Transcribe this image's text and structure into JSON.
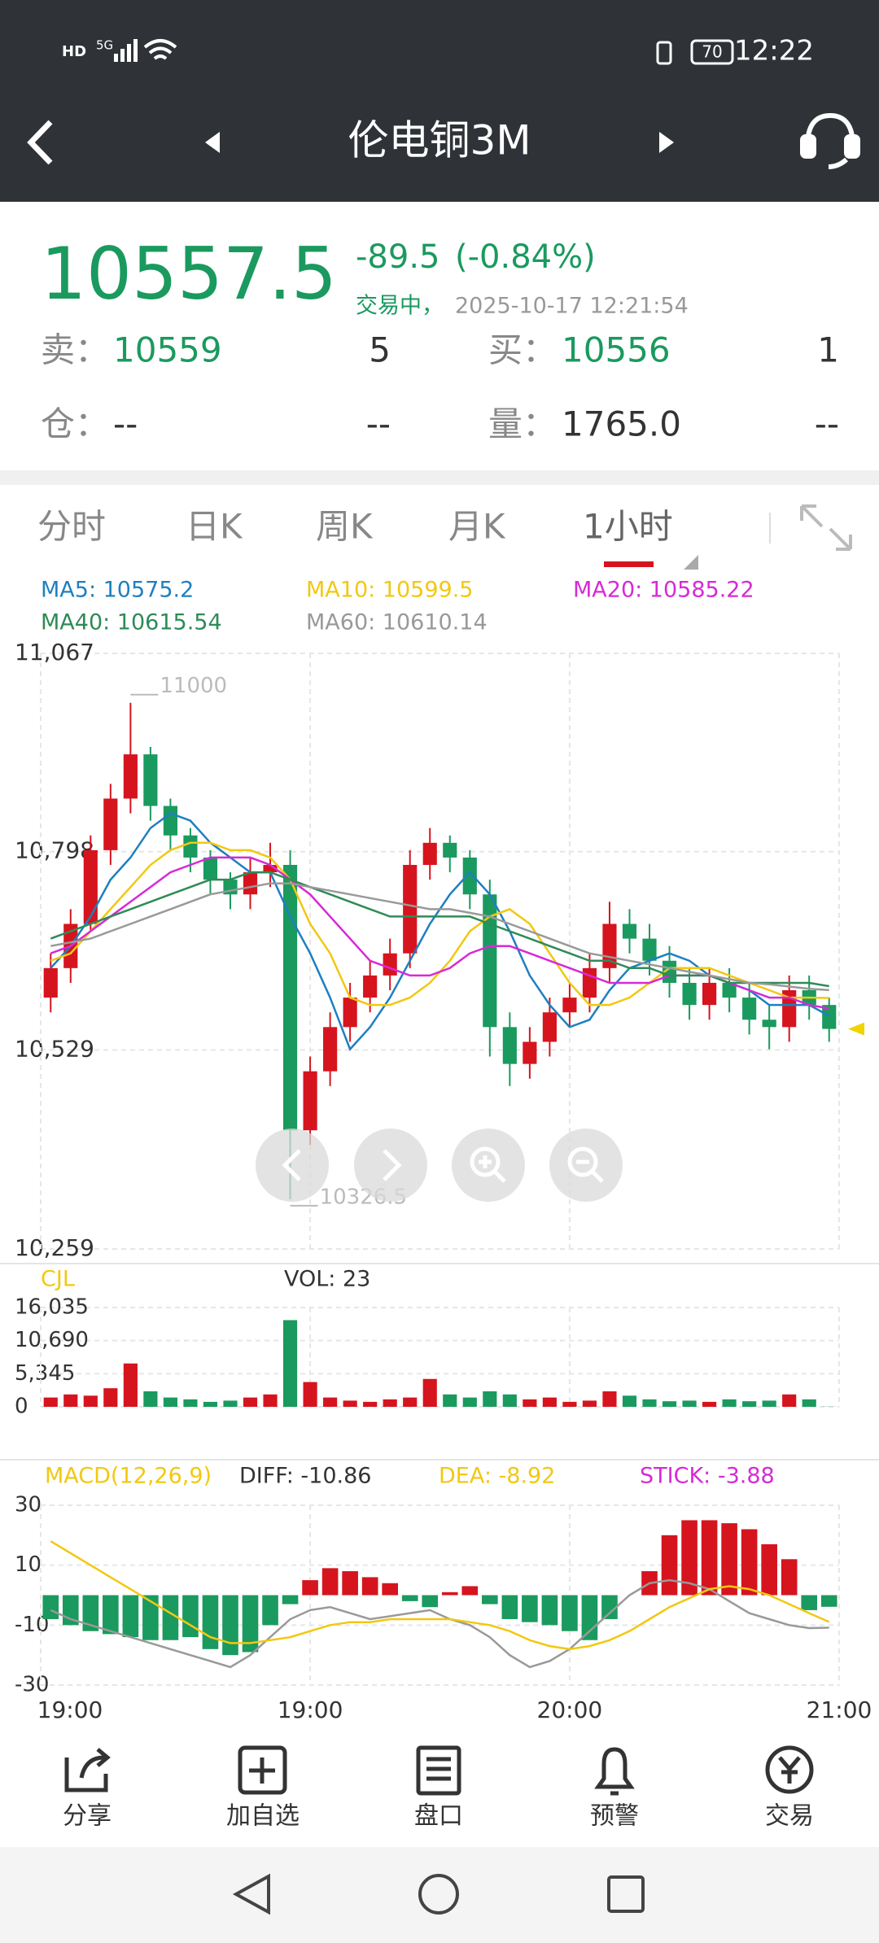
{
  "status_bar": {
    "hd": "HD",
    "network": "5G",
    "battery": "70",
    "time": "12:22"
  },
  "header": {
    "title": "伦电铜3M"
  },
  "quote": {
    "price": "10557.5",
    "change": "-89.5",
    "change_pct": "(-0.84%)",
    "status": "交易中，",
    "datetime": "2025-10-17 12:21:54",
    "sell_label": "卖：",
    "sell_price": "10559",
    "sell_qty": "5",
    "buy_label": "买：",
    "buy_price": "10556",
    "buy_qty": "1",
    "oi_label": "仓：",
    "oi_value": "--",
    "oi_right": "--",
    "vol_label": "量：",
    "vol_value": "1765.0",
    "vol_right": "--"
  },
  "tabs": [
    "分时",
    "日K",
    "周K",
    "月K",
    "1小时"
  ],
  "chart_data": [
    {
      "type": "candlestick",
      "up_color": "#d6141e",
      "down_color": "#1a9a5e",
      "open": [
        10600,
        10640,
        10700,
        10800,
        10870,
        10930,
        10860,
        10820,
        10790,
        10760,
        10740,
        10770,
        10780,
        10420,
        10500,
        10560,
        10600,
        10630,
        10660,
        10780,
        10810,
        10790,
        10740,
        10560,
        10510,
        10540,
        10580,
        10600,
        10640,
        10700,
        10680,
        10650,
        10620,
        10590,
        10620,
        10600,
        10570,
        10560,
        10610,
        10590
      ],
      "high": [
        10660,
        10720,
        10820,
        10890,
        11000,
        10940,
        10870,
        10830,
        10800,
        10770,
        10790,
        10810,
        10800,
        10520,
        10580,
        10620,
        10650,
        10680,
        10800,
        10830,
        10820,
        10800,
        10760,
        10580,
        10560,
        10600,
        10620,
        10660,
        10730,
        10720,
        10700,
        10670,
        10640,
        10640,
        10640,
        10620,
        10590,
        10630,
        10630,
        10600
      ],
      "low": [
        10580,
        10620,
        10690,
        10780,
        10850,
        10840,
        10800,
        10770,
        10740,
        10720,
        10720,
        10750,
        10326.5,
        10400,
        10480,
        10540,
        10580,
        10610,
        10640,
        10760,
        10770,
        10720,
        10520,
        10480,
        10490,
        10520,
        10560,
        10580,
        10620,
        10660,
        10630,
        10600,
        10570,
        10570,
        10580,
        10550,
        10530,
        10540,
        10570,
        10540
      ],
      "close": [
        10640,
        10700,
        10800,
        10870,
        10930,
        10860,
        10820,
        10790,
        10760,
        10740,
        10770,
        10780,
        10420,
        10500,
        10560,
        10600,
        10630,
        10660,
        10780,
        10810,
        10790,
        10740,
        10560,
        10510,
        10540,
        10580,
        10600,
        10640,
        10700,
        10680,
        10650,
        10620,
        10590,
        10620,
        10600,
        10570,
        10560,
        10610,
        10590,
        10557.5
      ],
      "series": [
        {
          "name": "MA5: 10575.2",
          "color": "#1f7fc0",
          "values": [
            10640,
            10670,
            10710,
            10760,
            10790,
            10830,
            10850,
            10840,
            10810,
            10790,
            10770,
            10770,
            10710,
            10660,
            10600,
            10530,
            10560,
            10600,
            10650,
            10700,
            10740,
            10770,
            10740,
            10690,
            10630,
            10590,
            10560,
            10570,
            10610,
            10640,
            10650,
            10660,
            10650,
            10630,
            10620,
            10610,
            10590,
            10590,
            10590,
            10575.2
          ]
        },
        {
          "name": "MA10: 10599.5",
          "color": "#f2c811",
          "values": [
            10650,
            10660,
            10690,
            10720,
            10750,
            10780,
            10800,
            10810,
            10810,
            10800,
            10800,
            10790,
            10760,
            10700,
            10660,
            10600,
            10590,
            10590,
            10600,
            10620,
            10650,
            10690,
            10710,
            10720,
            10700,
            10660,
            10620,
            10590,
            10590,
            10600,
            10620,
            10640,
            10640,
            10640,
            10630,
            10620,
            10610,
            10600,
            10600,
            10599.5
          ]
        },
        {
          "name": "MA20: 10585.22",
          "color": "#d62ad6",
          "values": [
            10660,
            10670,
            10690,
            10710,
            10730,
            10750,
            10770,
            10780,
            10790,
            10790,
            10790,
            10780,
            10760,
            10740,
            10710,
            10680,
            10650,
            10640,
            10630,
            10630,
            10640,
            10660,
            10670,
            10670,
            10660,
            10650,
            10640,
            10630,
            10620,
            10620,
            10620,
            10630,
            10630,
            10630,
            10620,
            10610,
            10600,
            10600,
            10590,
            10585.22
          ]
        },
        {
          "name": "MA40: 10615.54",
          "color": "#2e8b57",
          "values": [
            10680,
            10690,
            10700,
            10710,
            10720,
            10730,
            10740,
            10750,
            10760,
            10760,
            10770,
            10770,
            10760,
            10750,
            10740,
            10730,
            10720,
            10710,
            10710,
            10710,
            10710,
            10710,
            10700,
            10690,
            10680,
            10670,
            10660,
            10650,
            10650,
            10640,
            10640,
            10630,
            10630,
            10630,
            10620,
            10620,
            10620,
            10620,
            10620,
            10615.54
          ]
        },
        {
          "name": "MA60: 10610.14",
          "color": "#999999",
          "values": [
            10670,
            10675,
            10680,
            10690,
            10700,
            10710,
            10720,
            10730,
            10740,
            10745,
            10750,
            10755,
            10755,
            10750,
            10745,
            10740,
            10735,
            10730,
            10725,
            10720,
            10720,
            10715,
            10710,
            10700,
            10690,
            10680,
            10670,
            10660,
            10655,
            10650,
            10645,
            10640,
            10635,
            10630,
            10625,
            10620,
            10618,
            10615,
            10612,
            10610.14
          ]
        }
      ],
      "ylim": [
        10259,
        11067
      ],
      "yticks": [
        {
          "value": 10259,
          "label": "10,259"
        },
        {
          "value": 10529,
          "label": "10,529"
        },
        {
          "value": 10798,
          "label": "10,798"
        },
        {
          "value": 11067,
          "label": "11,067"
        }
      ],
      "grid": true,
      "max_label": "11000",
      "min_label": "10326.5"
    },
    {
      "type": "bar",
      "title": "CJL",
      "annotation": "VOL: 23",
      "values": [
        1500,
        2000,
        1800,
        3000,
        7000,
        2500,
        1500,
        1200,
        800,
        1000,
        1500,
        2000,
        14000,
        4000,
        1500,
        1000,
        800,
        1200,
        1500,
        4500,
        2000,
        1500,
        2500,
        2000,
        1200,
        1500,
        800,
        1000,
        2500,
        1800,
        1200,
        900,
        1000,
        800,
        1200,
        900,
        1000,
        2000,
        1200,
        23
      ],
      "ylim": [
        0,
        16035
      ],
      "yticks": [
        0,
        {
          "value": 5345,
          "label": "5,345"
        },
        {
          "value": 10690,
          "label": "10,690"
        },
        {
          "value": 16035,
          "label": "16,035"
        }
      ],
      "grid": true
    },
    {
      "type": "macd",
      "title": "MACD(12,26,9)",
      "up_color": "#d6141e",
      "down_color": "#1a9a5e",
      "series": [
        {
          "name": "DIFF: -10.86",
          "color": "#999999",
          "values": [
            -5,
            -8,
            -10,
            -12,
            -14,
            -16,
            -18,
            -20,
            -22,
            -24,
            -20,
            -14,
            -8,
            -5,
            -4,
            -6,
            -8,
            -7,
            -6,
            -5,
            -8,
            -10,
            -14,
            -20,
            -24,
            -22,
            -18,
            -12,
            -6,
            0,
            4,
            5,
            4,
            2,
            -2,
            -6,
            -8,
            -10,
            -11,
            -10.86
          ]
        },
        {
          "name": "DEA: -8.92",
          "color": "#f2c811",
          "values": [
            18,
            14,
            10,
            6,
            2,
            -2,
            -6,
            -10,
            -14,
            -16,
            -16,
            -15,
            -14,
            -12,
            -10,
            -9,
            -9,
            -8,
            -8,
            -8,
            -8,
            -9,
            -10,
            -12,
            -15,
            -17,
            -18,
            -17,
            -15,
            -12,
            -8,
            -4,
            -1,
            2,
            3,
            2,
            0,
            -3,
            -6,
            -8.92
          ]
        },
        {
          "name": "STICK: -3.88",
          "color": "#d62ad6",
          "values": [
            -8,
            -10,
            -12,
            -13,
            -14,
            -15,
            -15,
            -14,
            -18,
            -20,
            -19,
            -10,
            -3,
            5,
            9,
            8,
            6,
            4,
            -2,
            -4,
            1,
            3,
            -3,
            -8,
            -9,
            -10,
            -12,
            -15,
            -8,
            0,
            8,
            20,
            25,
            25,
            24,
            22,
            17,
            12,
            -5,
            -3.88
          ]
        }
      ],
      "ylim": [
        -30,
        30
      ],
      "yticks": [
        30,
        10,
        -10,
        -30
      ],
      "grid": true,
      "x_labels": [
        {
          "value": 0,
          "label": "19:00"
        },
        {
          "value": 13,
          "label": "19:00"
        },
        {
          "value": 26,
          "label": "20:00"
        },
        {
          "value": 39,
          "label": "21:00"
        }
      ]
    }
  ],
  "toolbar": [
    "分享",
    "加自选",
    "盘口",
    "预警",
    "交易"
  ]
}
